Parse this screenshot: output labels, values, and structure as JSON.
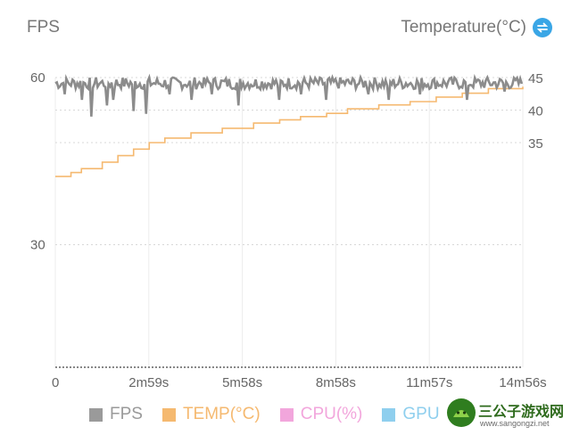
{
  "header": {
    "left_title": "FPS",
    "right_title": "Temperature(°C)",
    "toggle_icon": "swap-icon"
  },
  "chart_data": {
    "type": "line",
    "x_unit": "seconds",
    "x_ticks": [
      "0",
      "2m59s",
      "5m58s",
      "8m58s",
      "11m57s",
      "14m56s"
    ],
    "xlim": [
      0,
      896
    ],
    "y_left": {
      "label": "FPS",
      "ticks": [
        "60",
        "30"
      ],
      "ylim": [
        8,
        60
      ]
    },
    "y_right": {
      "label": "Temperature(°C)",
      "ticks": [
        "45",
        "40",
        "35"
      ]
    },
    "series": [
      {
        "name": "FPS",
        "axis": "left",
        "color": "#8c8c8c",
        "baseline": 59,
        "dips": [
          [
            18,
            57
          ],
          [
            50,
            56
          ],
          [
            70,
            53
          ],
          [
            100,
            55
          ],
          [
            110,
            56
          ],
          [
            150,
            54
          ],
          [
            175,
            53.5
          ],
          [
            220,
            57
          ],
          [
            260,
            56
          ],
          [
            300,
            57
          ],
          [
            350,
            55
          ],
          [
            430,
            56
          ],
          [
            470,
            57
          ],
          [
            520,
            56
          ],
          [
            600,
            57
          ],
          [
            640,
            56
          ],
          [
            700,
            57
          ],
          [
            790,
            56
          ],
          [
            860,
            57.5
          ]
        ]
      },
      {
        "name": "TEMP(°C)",
        "axis": "right",
        "color": "#f5b970",
        "points": [
          [
            0,
            29.8
          ],
          [
            30,
            30.4
          ],
          [
            50,
            31
          ],
          [
            90,
            32
          ],
          [
            120,
            33
          ],
          [
            150,
            34
          ],
          [
            180,
            35
          ],
          [
            210,
            35.7
          ],
          [
            260,
            36.5
          ],
          [
            320,
            37.2
          ],
          [
            380,
            38
          ],
          [
            430,
            38.5
          ],
          [
            470,
            39
          ],
          [
            520,
            39.5
          ],
          [
            560,
            40.2
          ],
          [
            620,
            40.8
          ],
          [
            680,
            41.3
          ],
          [
            730,
            42
          ],
          [
            780,
            42.6
          ],
          [
            830,
            43.3
          ],
          [
            896,
            43.6
          ]
        ]
      }
    ],
    "legend": {
      "placement": "bottom",
      "items": [
        {
          "label": "FPS",
          "color": "#9a9a9a"
        },
        {
          "label": "TEMP(°C)",
          "color": "#f5b970"
        },
        {
          "label": "CPU(%)",
          "color": "#f2a6dc"
        },
        {
          "label": "GPU",
          "color": "#8fcfee"
        }
      ]
    }
  },
  "watermark": {
    "main": "三公子游戏网",
    "sub": "www.sangongzi.net"
  }
}
